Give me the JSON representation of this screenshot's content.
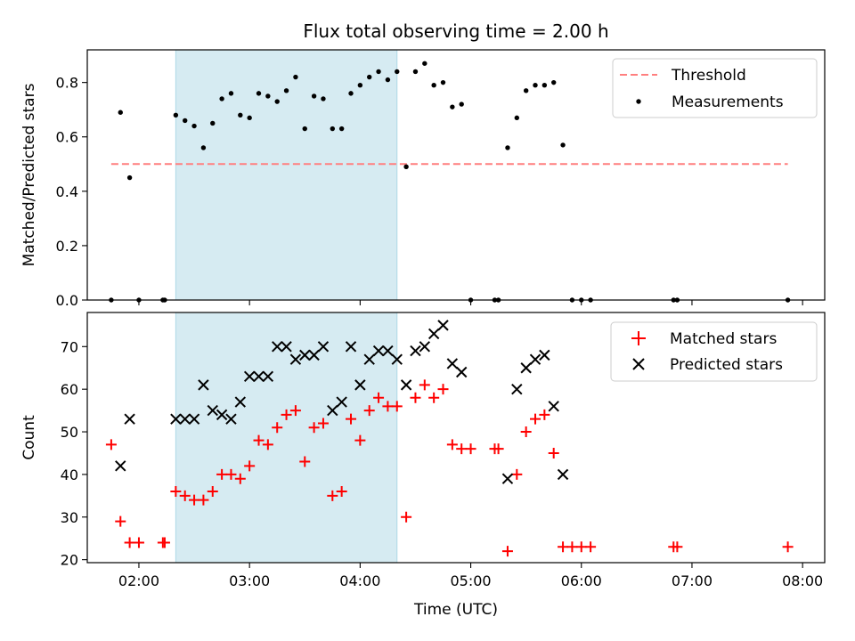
{
  "chart_data": {
    "title": "Flux total observing time = 2.00 h",
    "xlabel": "Time (UTC)",
    "x_ticks": [
      "02:00",
      "03:00",
      "04:00",
      "05:00",
      "06:00",
      "07:00",
      "08:00"
    ],
    "xlim": [
      "01:32",
      "08:12"
    ],
    "observing_window": [
      "02:20",
      "04:20"
    ],
    "highlight_color": "#add8e6",
    "panels": [
      {
        "type": "scatter",
        "ylabel": "Matched/Predicted stars",
        "ylim": [
          0,
          0.92
        ],
        "y_ticks": [
          "0.0",
          "0.2",
          "0.4",
          "0.6",
          "0.8"
        ],
        "legend_position": "top-right",
        "threshold": {
          "name": "Threshold",
          "value": 0.5,
          "x_range": [
            "01:45",
            "07:52"
          ],
          "color": "#ff7f7f"
        },
        "series": [
          {
            "name": "Measurements",
            "color": "#000000",
            "x": [
              "01:45",
              "01:50",
              "01:55",
              "02:00",
              "02:13",
              "02:14",
              "02:20",
              "02:25",
              "02:30",
              "02:35",
              "02:40",
              "02:45",
              "02:50",
              "02:55",
              "03:00",
              "03:05",
              "03:10",
              "03:15",
              "03:20",
              "03:25",
              "03:30",
              "03:35",
              "03:40",
              "03:45",
              "03:50",
              "03:55",
              "04:00",
              "04:05",
              "04:10",
              "04:15",
              "04:20",
              "04:25",
              "04:30",
              "04:35",
              "04:40",
              "04:45",
              "04:50",
              "04:55",
              "05:00",
              "05:13",
              "05:15",
              "05:20",
              "05:25",
              "05:30",
              "05:35",
              "05:40",
              "05:45",
              "05:50",
              "05:55",
              "06:00",
              "06:05",
              "06:50",
              "06:52",
              "07:52"
            ],
            "y": [
              0.0,
              0.69,
              0.45,
              0.0,
              0.0,
              0.0,
              0.68,
              0.66,
              0.64,
              0.56,
              0.65,
              0.74,
              0.76,
              0.68,
              0.67,
              0.76,
              0.75,
              0.73,
              0.77,
              0.82,
              0.63,
              0.75,
              0.74,
              0.63,
              0.63,
              0.76,
              0.79,
              0.82,
              0.84,
              0.81,
              0.84,
              0.49,
              0.84,
              0.87,
              0.79,
              0.8,
              0.71,
              0.72,
              0.0,
              0.0,
              0.0,
              0.56,
              0.67,
              0.77,
              0.79,
              0.79,
              0.8,
              0.57,
              0.0,
              0.0,
              0.0,
              0.0,
              0.0,
              0.0
            ]
          }
        ]
      },
      {
        "type": "scatter",
        "ylabel": "Count",
        "ylim": [
          19.3,
          78
        ],
        "y_ticks": [
          "20",
          "30",
          "40",
          "50",
          "60",
          "70"
        ],
        "legend_position": "top-right",
        "series": [
          {
            "name": "Matched stars",
            "marker": "+",
            "color": "#ff0000",
            "x": [
              "01:45",
              "01:50",
              "01:55",
              "02:00",
              "02:13",
              "02:14",
              "02:20",
              "02:25",
              "02:30",
              "02:35",
              "02:40",
              "02:45",
              "02:50",
              "02:55",
              "03:00",
              "03:05",
              "03:10",
              "03:15",
              "03:20",
              "03:25",
              "03:30",
              "03:35",
              "03:40",
              "03:45",
              "03:50",
              "03:55",
              "04:00",
              "04:05",
              "04:10",
              "04:15",
              "04:20",
              "04:25",
              "04:30",
              "04:35",
              "04:40",
              "04:45",
              "04:50",
              "04:55",
              "05:00",
              "05:13",
              "05:15",
              "05:20",
              "05:25",
              "05:30",
              "05:35",
              "05:40",
              "05:45",
              "05:50",
              "05:55",
              "06:00",
              "06:05",
              "06:50",
              "06:52",
              "07:52"
            ],
            "y": [
              47,
              29,
              24,
              24,
              24,
              24,
              36,
              35,
              34,
              34,
              36,
              40,
              40,
              39,
              42,
              48,
              47,
              51,
              54,
              55,
              43,
              51,
              52,
              35,
              36,
              53,
              48,
              55,
              58,
              56,
              56,
              30,
              58,
              61,
              58,
              60,
              47,
              46,
              46,
              46,
              46,
              22,
              40,
              50,
              53,
              54,
              45,
              23,
              23,
              23,
              23,
              23,
              23,
              23
            ]
          },
          {
            "name": "Predicted stars",
            "marker": "x",
            "color": "#000000",
            "x": [
              "01:50",
              "01:55",
              "02:20",
              "02:25",
              "02:30",
              "02:35",
              "02:40",
              "02:45",
              "02:50",
              "02:55",
              "03:00",
              "03:05",
              "03:10",
              "03:15",
              "03:20",
              "03:25",
              "03:30",
              "03:35",
              "03:40",
              "03:45",
              "03:50",
              "03:55",
              "04:00",
              "04:05",
              "04:10",
              "04:15",
              "04:20",
              "04:25",
              "04:30",
              "04:35",
              "04:40",
              "04:45",
              "04:50",
              "04:55",
              "05:20",
              "05:25",
              "05:30",
              "05:35",
              "05:40",
              "05:45",
              "05:50"
            ],
            "y": [
              42,
              53,
              53,
              53,
              53,
              61,
              55,
              54,
              53,
              57,
              63,
              63,
              63,
              70,
              70,
              67,
              68,
              68,
              70,
              55,
              57,
              70,
              61,
              67,
              69,
              69,
              67,
              61,
              69,
              70,
              73,
              75,
              66,
              64,
              39,
              60,
              65,
              67,
              68,
              56,
              40
            ]
          }
        ]
      }
    ]
  }
}
